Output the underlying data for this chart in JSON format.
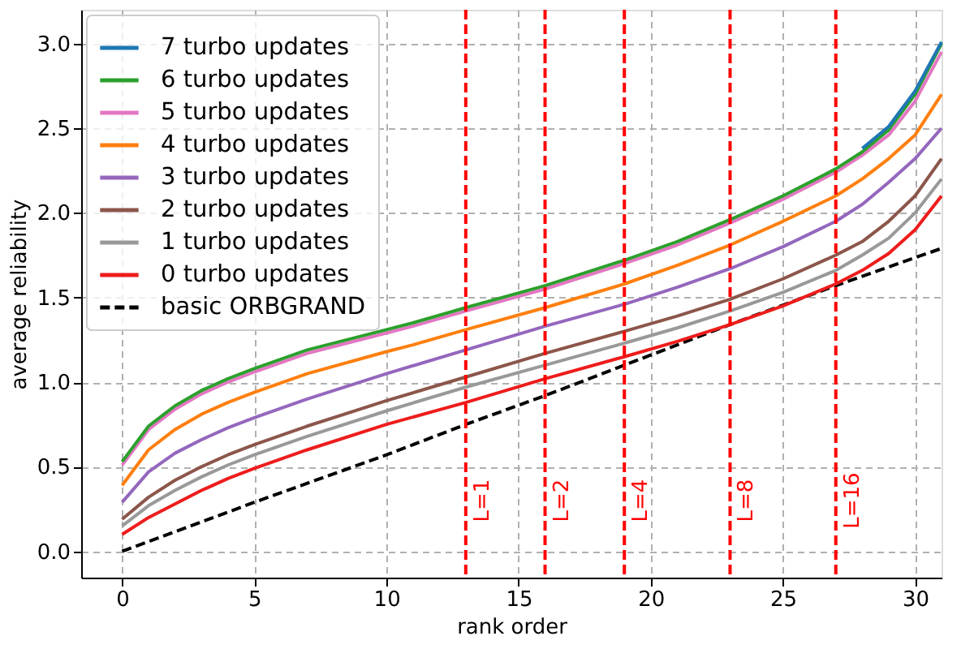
{
  "chart_data": {
    "type": "line",
    "xlabel": "rank order",
    "ylabel": "average reliability",
    "xlim": [
      -1.55,
      31
    ],
    "ylim": [
      -0.155,
      3.2
    ],
    "xticks": [
      0,
      5,
      10,
      15,
      20,
      25,
      30
    ],
    "yticks": [
      {
        "value": 0,
        "label": "0.0"
      },
      {
        "value": 0.5,
        "label": "0.5"
      },
      {
        "value": 1,
        "label": "1.0"
      },
      {
        "value": 1.5,
        "label": "1.5"
      },
      {
        "value": 2,
        "label": "2.0"
      },
      {
        "value": 2.5,
        "label": "2.5"
      },
      {
        "value": 3,
        "label": "3.0"
      }
    ],
    "x": [
      0,
      1,
      2,
      3,
      4,
      5,
      7,
      10,
      13,
      16,
      19,
      21,
      23,
      25,
      27,
      28,
      29,
      30,
      31
    ],
    "grid": true,
    "legend": "top left",
    "series": [
      {
        "name": "7 turbo updates",
        "color": "#1f77b4",
        "values": [
          null,
          null,
          null,
          null,
          null,
          null,
          null,
          null,
          null,
          null,
          null,
          null,
          null,
          null,
          null,
          2.38,
          2.51,
          2.72,
          3.01
        ]
      },
      {
        "name": "6 turbo updates",
        "color": "#2ca02c",
        "x": [
          0,
          1,
          2,
          3,
          4,
          5,
          7,
          10,
          11,
          13,
          16,
          19,
          21,
          23,
          25,
          27,
          28,
          29,
          30,
          31
        ],
        "values": [
          0.53,
          0.74,
          0.86,
          0.95,
          1.02,
          1.08,
          1.19,
          1.31,
          1.35,
          1.44,
          1.57,
          1.72,
          1.83,
          1.96,
          2.1,
          2.26,
          2.36,
          2.49,
          2.7,
          3.0
        ]
      },
      {
        "name": "5 turbo updates",
        "color": "#e377c2",
        "x": [
          0,
          1,
          2,
          3,
          4,
          5,
          7,
          10,
          11,
          13,
          16,
          19,
          21,
          23,
          25,
          27,
          28,
          29,
          30,
          31
        ],
        "values": [
          0.51,
          0.72,
          0.84,
          0.93,
          1.0,
          1.06,
          1.17,
          1.29,
          1.33,
          1.42,
          1.55,
          1.7,
          1.81,
          1.94,
          2.08,
          2.24,
          2.34,
          2.46,
          2.66,
          2.95
        ]
      },
      {
        "name": "4 turbo updates",
        "color": "#ff7f0e",
        "x": [
          0,
          1,
          2,
          3,
          4,
          5,
          7,
          10,
          11,
          13,
          16,
          19,
          21,
          23,
          25,
          27,
          28,
          29,
          30,
          31
        ],
        "values": [
          0.39,
          0.6,
          0.72,
          0.81,
          0.88,
          0.94,
          1.05,
          1.18,
          1.22,
          1.31,
          1.44,
          1.58,
          1.69,
          1.81,
          1.95,
          2.1,
          2.2,
          2.32,
          2.46,
          2.7
        ]
      },
      {
        "name": "3 turbo updates",
        "color": "#9467bd",
        "values": [
          0.29,
          0.47,
          0.58,
          0.66,
          0.73,
          0.79,
          0.9,
          1.05,
          1.19,
          1.33,
          1.46,
          1.56,
          1.67,
          1.8,
          1.95,
          2.05,
          2.18,
          2.32,
          2.5
        ]
      },
      {
        "name": "2 turbo updates",
        "color": "#8c564b",
        "values": [
          0.19,
          0.32,
          0.42,
          0.5,
          0.57,
          0.63,
          0.74,
          0.89,
          1.03,
          1.17,
          1.3,
          1.39,
          1.49,
          1.61,
          1.75,
          1.83,
          1.95,
          2.1,
          2.32
        ]
      },
      {
        "name": "1 turbo updates",
        "color": "#999999",
        "values": [
          0.15,
          0.27,
          0.36,
          0.44,
          0.51,
          0.57,
          0.68,
          0.83,
          0.97,
          1.1,
          1.23,
          1.32,
          1.42,
          1.53,
          1.66,
          1.75,
          1.85,
          2.0,
          2.2
        ]
      },
      {
        "name": "0 turbo updates",
        "color": "#ee1c1c",
        "values": [
          0.1,
          0.2,
          0.28,
          0.36,
          0.43,
          0.49,
          0.6,
          0.75,
          0.88,
          1.02,
          1.15,
          1.24,
          1.34,
          1.45,
          1.58,
          1.66,
          1.76,
          1.9,
          2.1
        ]
      },
      {
        "name": "basic ORBGRAND",
        "color": "#000000",
        "line_style": "dashed",
        "x": [
          0,
          5,
          10,
          13,
          16,
          19,
          23,
          27,
          31
        ],
        "values": [
          0,
          0.29,
          0.57,
          0.75,
          0.92,
          1.1,
          1.34,
          1.57,
          1.79
        ]
      }
    ],
    "ref_lines": [
      {
        "axis": "x",
        "value": 13,
        "color": "#ff0000",
        "line_style": "dashed"
      },
      {
        "axis": "x",
        "value": 16,
        "color": "#ff0000",
        "line_style": "dashed"
      },
      {
        "axis": "x",
        "value": 19,
        "color": "#ff0000",
        "line_style": "dashed"
      },
      {
        "axis": "x",
        "value": 23,
        "color": "#ff0000",
        "line_style": "dashed"
      },
      {
        "axis": "x",
        "value": 27,
        "color": "#ff0000",
        "line_style": "dashed"
      }
    ],
    "annotations": [
      {
        "text": "L=1",
        "x": 13,
        "y": 0.3
      },
      {
        "text": "L=2",
        "x": 16,
        "y": 0.3
      },
      {
        "text": "L=4",
        "x": 19,
        "y": 0.3
      },
      {
        "text": "L=8",
        "x": 23,
        "y": 0.3
      },
      {
        "text": "L=16",
        "x": 27,
        "y": 0.3
      }
    ]
  }
}
